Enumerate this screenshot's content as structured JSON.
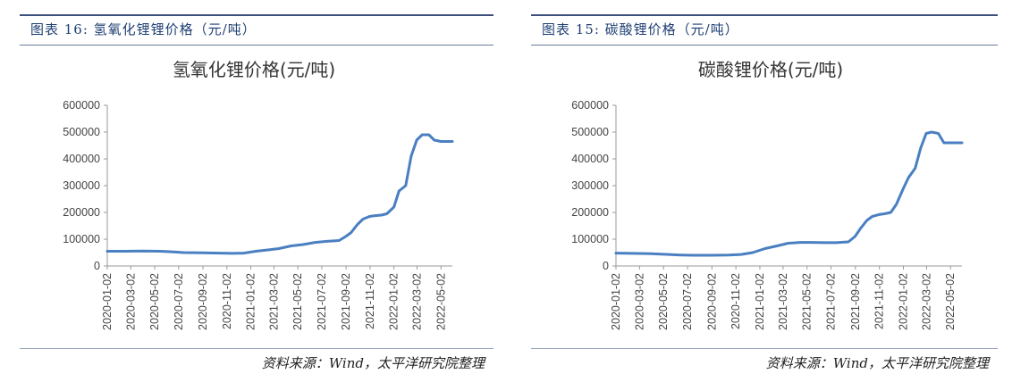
{
  "panels": [
    {
      "caption": "图表 16: 氢氧化锂锂价格（元/吨）",
      "source": "资料来源：Wind，太平洋研究院整理"
    },
    {
      "caption": "图表 15: 碳酸锂价格（元/吨）",
      "source": "资料来源：Wind，太平洋研究院整理"
    }
  ],
  "chart_data": [
    {
      "type": "line",
      "title": "氢氧化锂价格(元/吨)",
      "xlabel": "",
      "ylabel": "",
      "ylim": [
        0,
        600000
      ],
      "yticks": [
        0,
        100000,
        200000,
        300000,
        400000,
        500000,
        600000
      ],
      "xticks": [
        "2020-01-02",
        "2020-03-02",
        "2020-05-02",
        "2020-07-02",
        "2020-09-02",
        "2020-11-02",
        "2021-01-02",
        "2021-03-02",
        "2021-05-02",
        "2021-07-02",
        "2021-09-02",
        "2021-11-02",
        "2022-01-02",
        "2022-03-02",
        "2022-05-02"
      ],
      "grid": false,
      "line_color": "#4a7fc1",
      "series": [
        {
          "x": [
            "2020-01-02",
            "2020-02-15",
            "2020-04-01",
            "2020-05-15",
            "2020-06-15",
            "2020-07-15",
            "2020-09-01",
            "2020-10-15",
            "2020-11-15",
            "2020-12-15",
            "2021-01-15",
            "2021-02-15",
            "2021-03-15",
            "2021-04-15",
            "2021-05-15",
            "2021-06-15",
            "2021-07-15",
            "2021-08-15",
            "2021-09-01",
            "2021-09-15",
            "2021-10-01",
            "2021-10-15",
            "2021-11-01",
            "2021-11-15",
            "2021-12-01",
            "2021-12-15",
            "2022-01-02",
            "2022-01-15",
            "2022-02-01",
            "2022-02-15",
            "2022-03-01",
            "2022-03-15",
            "2022-04-01",
            "2022-04-15",
            "2022-05-02",
            "2022-05-31"
          ],
          "values": [
            55000,
            55000,
            56000,
            55000,
            53000,
            50000,
            49000,
            48000,
            47000,
            48000,
            55000,
            60000,
            65000,
            75000,
            80000,
            88000,
            92000,
            95000,
            110000,
            125000,
            155000,
            175000,
            185000,
            188000,
            190000,
            195000,
            220000,
            280000,
            300000,
            410000,
            470000,
            490000,
            490000,
            470000,
            465000,
            465000
          ]
        }
      ]
    },
    {
      "type": "line",
      "title": "碳酸锂价格(元/吨)",
      "xlabel": "",
      "ylabel": "",
      "ylim": [
        0,
        600000
      ],
      "yticks": [
        0,
        100000,
        200000,
        300000,
        400000,
        500000,
        600000
      ],
      "xticks": [
        "2020-01-02",
        "2020-03-02",
        "2020-05-02",
        "2020-07-02",
        "2020-09-02",
        "2020-11-02",
        "2021-01-02",
        "2021-03-02",
        "2021-05-02",
        "2021-07-02",
        "2021-09-02",
        "2021-11-02",
        "2022-01-02",
        "2022-03-02",
        "2022-05-02"
      ],
      "grid": false,
      "line_color": "#4a7fc1",
      "series": [
        {
          "x": [
            "2020-01-02",
            "2020-02-15",
            "2020-04-01",
            "2020-05-15",
            "2020-06-15",
            "2020-07-15",
            "2020-09-01",
            "2020-10-15",
            "2020-11-15",
            "2020-12-15",
            "2021-01-15",
            "2021-02-15",
            "2021-03-15",
            "2021-04-15",
            "2021-05-15",
            "2021-06-15",
            "2021-07-15",
            "2021-08-15",
            "2021-09-01",
            "2021-09-15",
            "2021-10-01",
            "2021-10-15",
            "2021-11-01",
            "2021-11-15",
            "2021-12-01",
            "2021-12-15",
            "2022-01-02",
            "2022-01-15",
            "2022-02-01",
            "2022-02-15",
            "2022-03-01",
            "2022-03-15",
            "2022-04-01",
            "2022-04-15",
            "2022-05-02",
            "2022-05-31"
          ],
          "values": [
            48000,
            47000,
            46000,
            43000,
            41000,
            40000,
            40000,
            41000,
            43000,
            50000,
            65000,
            75000,
            85000,
            88000,
            88000,
            87000,
            87000,
            90000,
            110000,
            140000,
            170000,
            185000,
            192000,
            195000,
            200000,
            230000,
            290000,
            330000,
            365000,
            440000,
            495000,
            500000,
            495000,
            460000,
            460000,
            460000
          ]
        }
      ]
    }
  ]
}
